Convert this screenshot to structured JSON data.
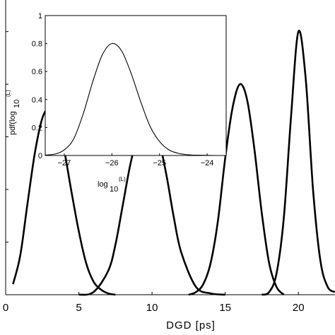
{
  "chart_data": [
    {
      "type": "line",
      "xlabel": "DGD [ps]",
      "ylabel": "",
      "xlim": [
        0,
        22.5
      ],
      "ylim": [
        0,
        1.12
      ],
      "xticks": [
        0,
        5,
        10,
        15,
        20
      ],
      "grid": false,
      "legend": "none",
      "series": [
        {
          "x": [
            0.5,
            1,
            1.5,
            2,
            2.5,
            3,
            3.5,
            4,
            4.5,
            5,
            5.5,
            6,
            6.5,
            7,
            7.5
          ],
          "y": [
            0.04,
            0.15,
            0.35,
            0.54,
            0.67,
            0.71,
            0.67,
            0.55,
            0.39,
            0.24,
            0.12,
            0.05,
            0.02,
            0.005,
            0
          ]
        },
        {
          "x": [
            5,
            6,
            7,
            7.5,
            8,
            8.5,
            9,
            9.5,
            10,
            10.5,
            11,
            11.5,
            12,
            13,
            14,
            15
          ],
          "y": [
            0,
            0.01,
            0.09,
            0.19,
            0.34,
            0.49,
            0.6,
            0.66,
            0.65,
            0.58,
            0.45,
            0.29,
            0.16,
            0.03,
            0.005,
            0
          ]
        },
        {
          "x": [
            12.5,
            13,
            13.5,
            14,
            14.5,
            15,
            15.5,
            16,
            16.5,
            17,
            17.5,
            18,
            18.5,
            19
          ],
          "y": [
            0,
            0.01,
            0.04,
            0.12,
            0.28,
            0.52,
            0.71,
            0.8,
            0.74,
            0.55,
            0.31,
            0.12,
            0.03,
            0
          ]
        },
        {
          "x": [
            17.5,
            18,
            18.5,
            19,
            19.5,
            20,
            20.5,
            21,
            21.5,
            22,
            22.5
          ],
          "y": [
            0,
            0.01,
            0.08,
            0.29,
            0.68,
            1.0,
            0.82,
            0.4,
            0.13,
            0.03,
            0.01
          ]
        }
      ]
    },
    {
      "type": "line",
      "xlabel": "log",
      "xlabel_sub": "10",
      "xlabel_sup": "(L)",
      "ylabel": "pdf(log",
      "ylabel_sub": "10",
      "ylabel_sup": "(L)",
      "xlim": [
        -27.4,
        -23.6
      ],
      "ylim": [
        0,
        1
      ],
      "xticks": [
        -27,
        -26,
        -25,
        -24
      ],
      "yticks": [
        0,
        0.2,
        0.4,
        0.6,
        0.8,
        1
      ],
      "xtick_labels": [
        "−27",
        "−26",
        "−25",
        "−24"
      ],
      "ytick_labels": [
        "0",
        "0.2",
        "0.4",
        "0.6",
        "0.8",
        "1"
      ],
      "grid": false,
      "series": [
        {
          "x": [
            -27.4,
            -27.2,
            -27,
            -26.8,
            -26.6,
            -26.4,
            -26.2,
            -26,
            -25.8,
            -25.6,
            -25.4,
            -25.2,
            -25,
            -24.8,
            -24.6,
            -24.4,
            -24.2,
            -24,
            -23.8,
            -23.6
          ],
          "y": [
            0.003,
            0.01,
            0.04,
            0.12,
            0.3,
            0.53,
            0.72,
            0.8,
            0.75,
            0.59,
            0.39,
            0.21,
            0.1,
            0.04,
            0.015,
            0.005,
            0.002,
            0.001,
            0,
            0
          ]
        }
      ]
    }
  ]
}
